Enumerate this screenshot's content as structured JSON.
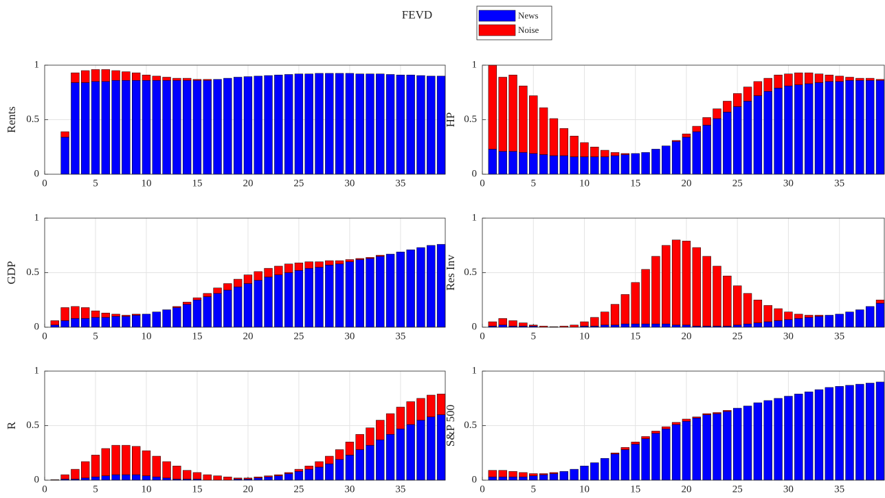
{
  "title": "FEVD",
  "chart_data": [
    {
      "type": "bar",
      "ylabel": "Rents",
      "stacked": true,
      "grid": true,
      "xlim": [
        0,
        39.4
      ],
      "ylim": [
        0,
        1
      ],
      "xticks": [
        0,
        5,
        10,
        15,
        20,
        25,
        30,
        35
      ],
      "yticks": [
        0,
        0.5,
        1
      ],
      "x": [
        1,
        2,
        3,
        4,
        5,
        6,
        7,
        8,
        9,
        10,
        11,
        12,
        13,
        14,
        15,
        16,
        17,
        18,
        19,
        20,
        21,
        22,
        23,
        24,
        25,
        26,
        27,
        28,
        29,
        30,
        31,
        32,
        33,
        34,
        35,
        36,
        37,
        38,
        39
      ],
      "series": [
        {
          "name": "News",
          "color": "#0000ff",
          "values": [
            0,
            0.34,
            0.84,
            0.84,
            0.85,
            0.85,
            0.86,
            0.86,
            0.86,
            0.86,
            0.86,
            0.86,
            0.86,
            0.86,
            0.86,
            0.86,
            0.87,
            0.88,
            0.89,
            0.895,
            0.9,
            0.905,
            0.91,
            0.915,
            0.92,
            0.92,
            0.925,
            0.925,
            0.925,
            0.925,
            0.92,
            0.92,
            0.92,
            0.915,
            0.91,
            0.91,
            0.905,
            0.9,
            0.9
          ]
        },
        {
          "name": "Noise",
          "color": "#ff0000",
          "values": [
            0,
            0.05,
            0.09,
            0.11,
            0.11,
            0.11,
            0.09,
            0.08,
            0.07,
            0.05,
            0.04,
            0.03,
            0.02,
            0.02,
            0.01,
            0.01,
            0,
            0,
            0,
            0,
            0,
            0,
            0,
            0,
            0,
            0,
            0,
            0,
            0,
            0,
            0,
            0,
            0,
            0,
            0,
            0,
            0,
            0,
            0
          ]
        }
      ]
    },
    {
      "type": "bar",
      "ylabel": "HP",
      "stacked": true,
      "grid": true,
      "xlim": [
        0,
        39.4
      ],
      "ylim": [
        0,
        1
      ],
      "xticks": [
        0,
        5,
        10,
        15,
        20,
        25,
        30,
        35
      ],
      "yticks": [
        0,
        0.5,
        1
      ],
      "x": [
        1,
        2,
        3,
        4,
        5,
        6,
        7,
        8,
        9,
        10,
        11,
        12,
        13,
        14,
        15,
        16,
        17,
        18,
        19,
        20,
        21,
        22,
        23,
        24,
        25,
        26,
        27,
        28,
        29,
        30,
        31,
        32,
        33,
        34,
        35,
        36,
        37,
        38,
        39
      ],
      "series": [
        {
          "name": "News",
          "color": "#0000ff",
          "values": [
            0.23,
            0.21,
            0.21,
            0.2,
            0.19,
            0.18,
            0.17,
            0.17,
            0.16,
            0.16,
            0.16,
            0.16,
            0.17,
            0.18,
            0.19,
            0.2,
            0.23,
            0.26,
            0.3,
            0.34,
            0.39,
            0.45,
            0.51,
            0.57,
            0.62,
            0.67,
            0.72,
            0.76,
            0.79,
            0.81,
            0.82,
            0.83,
            0.84,
            0.85,
            0.85,
            0.86,
            0.86,
            0.86,
            0.86
          ]
        },
        {
          "name": "Noise",
          "color": "#ff0000",
          "values": [
            0.77,
            0.68,
            0.7,
            0.61,
            0.53,
            0.43,
            0.34,
            0.25,
            0.19,
            0.13,
            0.09,
            0.06,
            0.03,
            0.01,
            0,
            0,
            0,
            0,
            0.01,
            0.03,
            0.05,
            0.07,
            0.09,
            0.1,
            0.12,
            0.13,
            0.13,
            0.12,
            0.12,
            0.11,
            0.11,
            0.1,
            0.08,
            0.06,
            0.05,
            0.03,
            0.02,
            0.02,
            0.01
          ]
        }
      ]
    },
    {
      "type": "bar",
      "ylabel": "GDP",
      "stacked": true,
      "grid": true,
      "xlim": [
        0,
        39.4
      ],
      "ylim": [
        0,
        1
      ],
      "xticks": [
        0,
        5,
        10,
        15,
        20,
        25,
        30,
        35
      ],
      "yticks": [
        0,
        0.5,
        1
      ],
      "x": [
        1,
        2,
        3,
        4,
        5,
        6,
        7,
        8,
        9,
        10,
        11,
        12,
        13,
        14,
        15,
        16,
        17,
        18,
        19,
        20,
        21,
        22,
        23,
        24,
        25,
        26,
        27,
        28,
        29,
        30,
        31,
        32,
        33,
        34,
        35,
        36,
        37,
        38,
        39
      ],
      "series": [
        {
          "name": "News",
          "color": "#0000ff",
          "values": [
            0.02,
            0.06,
            0.08,
            0.08,
            0.09,
            0.09,
            0.1,
            0.1,
            0.11,
            0.12,
            0.14,
            0.16,
            0.18,
            0.21,
            0.25,
            0.28,
            0.31,
            0.34,
            0.37,
            0.4,
            0.43,
            0.46,
            0.48,
            0.5,
            0.52,
            0.54,
            0.55,
            0.57,
            0.58,
            0.6,
            0.62,
            0.63,
            0.65,
            0.67,
            0.69,
            0.71,
            0.73,
            0.75,
            0.76
          ]
        },
        {
          "name": "Noise",
          "color": "#ff0000",
          "values": [
            0.04,
            0.12,
            0.11,
            0.1,
            0.06,
            0.04,
            0.02,
            0.01,
            0.01,
            0,
            0,
            0,
            0.01,
            0.02,
            0.02,
            0.03,
            0.05,
            0.06,
            0.07,
            0.08,
            0.08,
            0.08,
            0.08,
            0.08,
            0.07,
            0.06,
            0.05,
            0.04,
            0.03,
            0.02,
            0.01,
            0.01,
            0.01,
            0,
            0,
            0,
            0,
            0,
            0
          ]
        }
      ]
    },
    {
      "type": "bar",
      "ylabel": "Res Inv",
      "stacked": true,
      "grid": true,
      "xlim": [
        0,
        39.4
      ],
      "ylim": [
        0,
        1
      ],
      "xticks": [
        0,
        5,
        10,
        15,
        20,
        25,
        30,
        35
      ],
      "yticks": [
        0,
        0.5,
        1
      ],
      "x": [
        1,
        2,
        3,
        4,
        5,
        6,
        7,
        8,
        9,
        10,
        11,
        12,
        13,
        14,
        15,
        16,
        17,
        18,
        19,
        20,
        21,
        22,
        23,
        24,
        25,
        26,
        27,
        28,
        29,
        30,
        31,
        32,
        33,
        34,
        35,
        36,
        37,
        38,
        39
      ],
      "series": [
        {
          "name": "News",
          "color": "#0000ff",
          "values": [
            0.01,
            0.02,
            0.01,
            0.01,
            0.01,
            0,
            0,
            0,
            0,
            0.01,
            0.01,
            0.02,
            0.02,
            0.03,
            0.03,
            0.03,
            0.03,
            0.03,
            0.02,
            0.02,
            0.01,
            0.01,
            0.01,
            0.01,
            0.02,
            0.03,
            0.04,
            0.05,
            0.06,
            0.07,
            0.08,
            0.09,
            0.1,
            0.11,
            0.12,
            0.14,
            0.16,
            0.19,
            0.22
          ]
        },
        {
          "name": "Noise",
          "color": "#ff0000",
          "values": [
            0.04,
            0.06,
            0.05,
            0.03,
            0.01,
            0.01,
            0.005,
            0.01,
            0.02,
            0.04,
            0.08,
            0.12,
            0.19,
            0.27,
            0.38,
            0.5,
            0.62,
            0.72,
            0.78,
            0.77,
            0.72,
            0.64,
            0.55,
            0.46,
            0.36,
            0.28,
            0.21,
            0.15,
            0.11,
            0.07,
            0.04,
            0.02,
            0.01,
            0,
            0,
            0,
            0,
            0,
            0.03
          ]
        }
      ]
    },
    {
      "type": "bar",
      "ylabel": "R",
      "stacked": true,
      "grid": true,
      "xlim": [
        0,
        39.4
      ],
      "ylim": [
        0,
        1
      ],
      "xticks": [
        0,
        5,
        10,
        15,
        20,
        25,
        30,
        35
      ],
      "yticks": [
        0,
        0.5,
        1
      ],
      "x": [
        1,
        2,
        3,
        4,
        5,
        6,
        7,
        8,
        9,
        10,
        11,
        12,
        13,
        14,
        15,
        16,
        17,
        18,
        19,
        20,
        21,
        22,
        23,
        24,
        25,
        26,
        27,
        28,
        29,
        30,
        31,
        32,
        33,
        34,
        35,
        36,
        37,
        38,
        39
      ],
      "series": [
        {
          "name": "News",
          "color": "#0000ff",
          "values": [
            0,
            0.01,
            0.01,
            0.02,
            0.03,
            0.04,
            0.05,
            0.05,
            0.05,
            0.04,
            0.03,
            0.02,
            0.01,
            0.01,
            0.01,
            0,
            0,
            0,
            0.01,
            0.01,
            0.02,
            0.03,
            0.04,
            0.06,
            0.08,
            0.1,
            0.12,
            0.15,
            0.19,
            0.23,
            0.28,
            0.32,
            0.37,
            0.42,
            0.47,
            0.51,
            0.55,
            0.58,
            0.6
          ]
        },
        {
          "name": "Noise",
          "color": "#ff0000",
          "values": [
            0.005,
            0.04,
            0.09,
            0.15,
            0.2,
            0.25,
            0.27,
            0.27,
            0.26,
            0.23,
            0.19,
            0.15,
            0.12,
            0.08,
            0.06,
            0.05,
            0.04,
            0.03,
            0.01,
            0.01,
            0.01,
            0.01,
            0.01,
            0.01,
            0.02,
            0.03,
            0.05,
            0.07,
            0.09,
            0.12,
            0.14,
            0.16,
            0.18,
            0.19,
            0.2,
            0.21,
            0.2,
            0.2,
            0.19
          ]
        }
      ]
    },
    {
      "type": "bar",
      "ylabel": "S&P 500",
      "stacked": true,
      "grid": true,
      "xlim": [
        0,
        39.4
      ],
      "ylim": [
        0,
        1
      ],
      "xticks": [
        0,
        5,
        10,
        15,
        20,
        25,
        30,
        35
      ],
      "yticks": [
        0,
        0.5,
        1
      ],
      "x": [
        1,
        2,
        3,
        4,
        5,
        6,
        7,
        8,
        9,
        10,
        11,
        12,
        13,
        14,
        15,
        16,
        17,
        18,
        19,
        20,
        21,
        22,
        23,
        24,
        25,
        26,
        27,
        28,
        29,
        30,
        31,
        32,
        33,
        34,
        35,
        36,
        37,
        38,
        39
      ],
      "series": [
        {
          "name": "News",
          "color": "#0000ff",
          "values": [
            0.03,
            0.03,
            0.03,
            0.03,
            0.04,
            0.05,
            0.06,
            0.08,
            0.1,
            0.13,
            0.16,
            0.2,
            0.24,
            0.28,
            0.33,
            0.38,
            0.43,
            0.47,
            0.51,
            0.54,
            0.57,
            0.6,
            0.61,
            0.63,
            0.66,
            0.68,
            0.71,
            0.73,
            0.75,
            0.77,
            0.79,
            0.81,
            0.83,
            0.85,
            0.86,
            0.87,
            0.88,
            0.89,
            0.9
          ]
        },
        {
          "name": "Noise",
          "color": "#ff0000",
          "values": [
            0.06,
            0.06,
            0.05,
            0.04,
            0.02,
            0.01,
            0.01,
            0,
            0,
            0,
            0,
            0,
            0.01,
            0.02,
            0.02,
            0.02,
            0.02,
            0.02,
            0.02,
            0.02,
            0.01,
            0.01,
            0.01,
            0.01,
            0,
            0,
            0,
            0,
            0,
            0,
            0,
            0,
            0,
            0,
            0,
            0,
            0,
            0,
            0
          ]
        }
      ]
    }
  ]
}
